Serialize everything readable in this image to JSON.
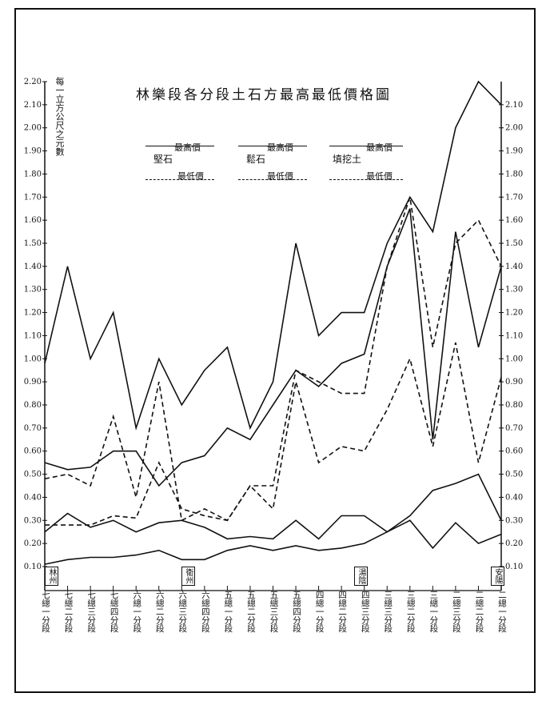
{
  "chart_data": {
    "type": "line",
    "title": "林樂段各分段土石方最高最低價格圖",
    "ylabel": "每一立方公尺之元數",
    "ylim": [
      0.1,
      2.2
    ],
    "yticks": [
      "2.20",
      "2.10",
      "2.00",
      "1.90",
      "1.80",
      "1.70",
      "1.60",
      "1.50",
      "1.40",
      "1.30",
      "1.20",
      "1.10",
      "1.00",
      "0.90",
      "0.80",
      "0.70",
      "0.60",
      "0.50",
      "0.40",
      "0.30",
      "0.20",
      "0.10"
    ],
    "yticks_right": [
      "2.10",
      "2.00",
      "1.90",
      "1.80",
      "1.70",
      "1.60",
      "1.50",
      "1.40",
      "1.30",
      "1.20",
      "1.10",
      "1.00",
      "0.90",
      "0.80",
      "0.70",
      "0.60",
      "0.50",
      "0.40",
      "0.30",
      "0.20",
      "0.10"
    ],
    "categories": [
      "七總一分段",
      "七總二分段",
      "七總三分段",
      "七總四分段",
      "六總一分段",
      "六總二分段",
      "六總三分段",
      "六總四分段",
      "五總一分段",
      "五總二分段",
      "五總三分段",
      "五總四分段",
      "四總一分段",
      "四總二分段",
      "四總三分段",
      "三總三分段",
      "三總二分段",
      "三總一分段",
      "二總三分段",
      "二總二分段",
      "二總一分段"
    ],
    "section_labels": [
      "林州",
      "衛州",
      "湯陰",
      "安陽"
    ],
    "legend": [
      {
        "group": "堅石",
        "high": "最高價",
        "low": "最低價"
      },
      {
        "group": "鬆石",
        "high": "最高價",
        "low": "最低價"
      },
      {
        "group": "填挖土",
        "high": "最高價",
        "low": "最低價"
      }
    ],
    "series": [
      {
        "name": "堅石 最高價",
        "style": "solid",
        "values": [
          0.98,
          1.4,
          1.0,
          1.2,
          0.7,
          1.0,
          0.8,
          0.95,
          1.05,
          0.7,
          0.9,
          1.5,
          1.1,
          1.2,
          1.2,
          1.5,
          1.7,
          1.55,
          2.0,
          2.2,
          2.1
        ]
      },
      {
        "name": "堅石 最低價",
        "style": "dash",
        "values": [
          0.48,
          0.5,
          0.45,
          0.75,
          0.4,
          0.9,
          0.3,
          0.35,
          0.3,
          0.45,
          0.45,
          0.95,
          0.9,
          0.85,
          0.85,
          1.4,
          1.7,
          1.05,
          1.5,
          1.6,
          1.4
        ]
      },
      {
        "name": "鬆石 最高價",
        "style": "solid",
        "values": [
          0.55,
          0.52,
          0.53,
          0.6,
          0.6,
          0.45,
          0.55,
          0.58,
          0.7,
          0.65,
          0.8,
          0.95,
          0.88,
          0.98,
          1.02,
          1.4,
          1.65,
          0.65,
          1.55,
          1.05,
          1.4
        ]
      },
      {
        "name": "鬆石 最低價",
        "style": "dash",
        "values": [
          0.28,
          0.28,
          0.28,
          0.32,
          0.31,
          0.55,
          0.35,
          0.32,
          0.3,
          0.45,
          0.35,
          0.9,
          0.55,
          0.62,
          0.6,
          0.78,
          1.0,
          0.62,
          1.07,
          0.55,
          0.92
        ]
      },
      {
        "name": "填挖土 最高價",
        "style": "solid",
        "values": [
          0.25,
          0.33,
          0.27,
          0.3,
          0.25,
          0.29,
          0.3,
          0.27,
          0.22,
          0.23,
          0.22,
          0.3,
          0.22,
          0.32,
          0.32,
          0.25,
          0.32,
          0.43,
          0.46,
          0.5,
          0.3
        ]
      },
      {
        "name": "填挖土 最低價",
        "style": "solid",
        "values": [
          0.11,
          0.13,
          0.14,
          0.14,
          0.15,
          0.17,
          0.13,
          0.13,
          0.17,
          0.19,
          0.17,
          0.19,
          0.17,
          0.18,
          0.2,
          0.25,
          0.3,
          0.18,
          0.29,
          0.2,
          0.24
        ]
      }
    ],
    "grid": false
  }
}
